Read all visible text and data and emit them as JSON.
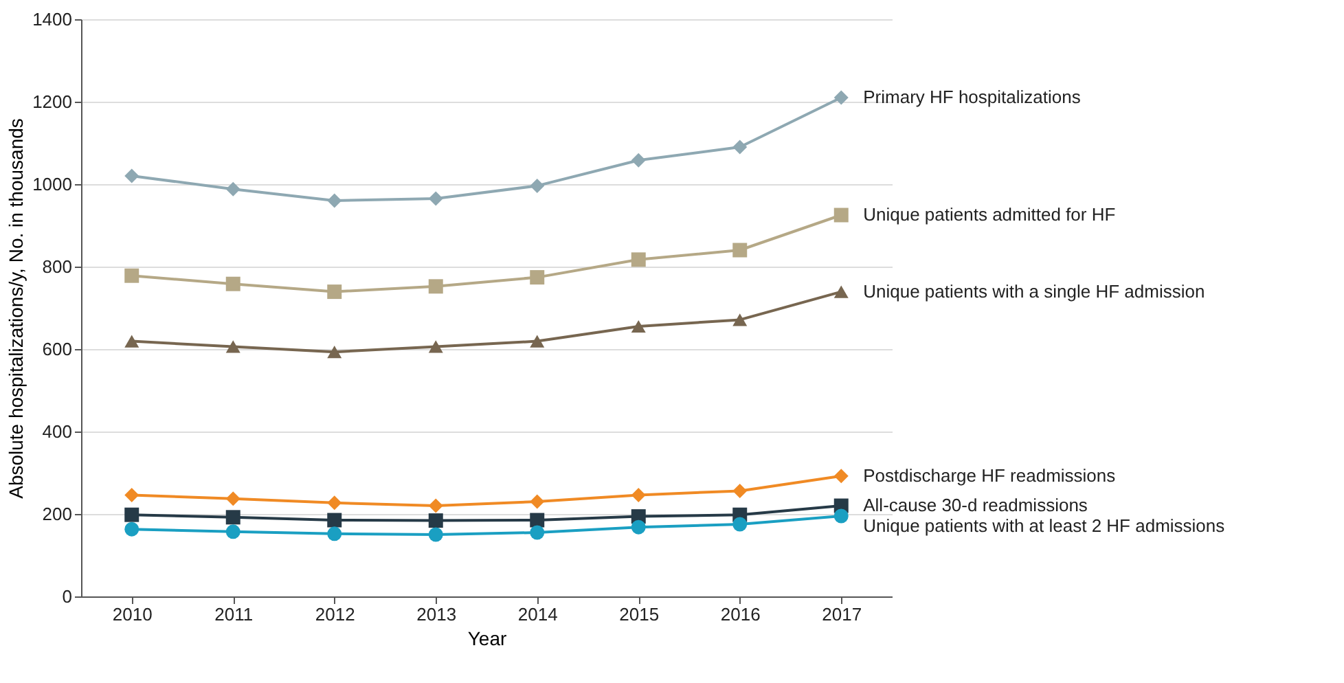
{
  "chart_data": {
    "type": "line",
    "xlabel": "Year",
    "ylabel": "Absolute hospitalizations/y, No. in thousands",
    "categories": [
      "2010",
      "2011",
      "2012",
      "2013",
      "2014",
      "2015",
      "2016",
      "2017"
    ],
    "ylim": [
      0,
      1400
    ],
    "yticks": [
      0,
      200,
      400,
      600,
      800,
      1000,
      1200,
      1400
    ],
    "grid": "y",
    "legend": false,
    "line_style": "solid",
    "series": [
      {
        "name": "Primary HF hospitalizations",
        "color": "#8ea8b2",
        "marker": "diamond",
        "values": [
          1020,
          988,
          960,
          965,
          996,
          1058,
          1090,
          1210
        ]
      },
      {
        "name": "Unique patients admitted for HF",
        "color": "#b5a886",
        "marker": "square",
        "values": [
          778,
          758,
          739,
          752,
          774,
          817,
          840,
          925
        ]
      },
      {
        "name": "Unique patients with a single HF admission",
        "color": "#776650",
        "marker": "triangle",
        "values": [
          619,
          606,
          593,
          606,
          619,
          655,
          671,
          739
        ]
      },
      {
        "name": "Postdischarge HF readmissions",
        "color": "#f08a24",
        "marker": "diamond",
        "values": [
          246,
          237,
          227,
          220,
          230,
          246,
          256,
          292
        ]
      },
      {
        "name": "All-cause 30-d readmissions",
        "color": "#263a47",
        "marker": "square",
        "values": [
          198,
          192,
          185,
          184,
          185,
          194,
          198,
          220
        ]
      },
      {
        "name": "Unique patients with at least 2 HF admissions",
        "color": "#1a9fc2",
        "marker": "circle",
        "values": [
          163,
          157,
          152,
          150,
          155,
          168,
          175,
          195
        ]
      }
    ]
  }
}
